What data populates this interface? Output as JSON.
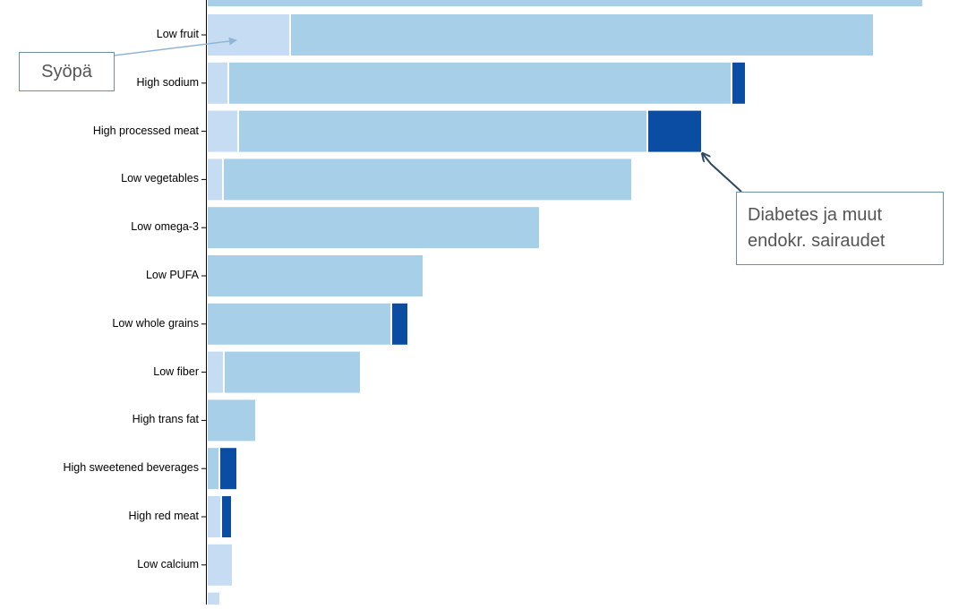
{
  "chart_data": {
    "type": "bar",
    "orientation": "horizontal",
    "stacked": true,
    "categories": [
      "Low fruit",
      "High sodium",
      "High processed meat",
      "Low vegetables",
      "Low omega-3",
      "Low PUFA",
      "Low whole grains",
      "Low fiber",
      "High trans fat",
      "High sweetened beverages",
      "High red meat",
      "Low calcium"
    ],
    "series": [
      {
        "color": "#c6dcf3",
        "values": [
          91,
          22,
          33,
          16,
          0,
          0,
          0,
          17,
          0,
          0,
          14,
          27
        ]
      },
      {
        "color": "#a7d0e8",
        "values": [
          650,
          560,
          455,
          455,
          370,
          240,
          204,
          151,
          53,
          12,
          0,
          0
        ]
      },
      {
        "color": "#0a4da3",
        "values": [
          0,
          14,
          59,
          0,
          0,
          0,
          17,
          0,
          0,
          18,
          10,
          0
        ]
      }
    ],
    "top_partial_bar_value": 798,
    "bottom_partial_bar_value": 13,
    "annotations": [
      {
        "text": "Syöpä"
      },
      {
        "lines": [
          "Diabetes ja muut",
          "endokr. sairaudet"
        ]
      }
    ]
  }
}
